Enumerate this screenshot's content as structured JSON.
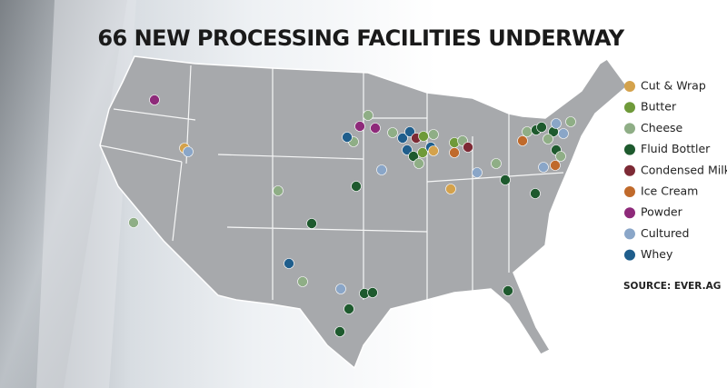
{
  "title": "66 NEW PROCESSING FACILITIES UNDERWAY",
  "legend": [
    {
      "label": "Cut & Wrap",
      "color": "#d4a24c"
    },
    {
      "label": "Butter",
      "color": "#6f9a3a"
    },
    {
      "label": "Cheese",
      "color": "#8fae86"
    },
    {
      "label": "Fluid Bottler",
      "color": "#1e5a2e"
    },
    {
      "label": "Condensed Milk",
      "color": "#7d2a35"
    },
    {
      "label": "Ice Cream",
      "color": "#c06a2b"
    },
    {
      "label": "Powder",
      "color": "#8e2a7a"
    },
    {
      "label": "Cultured",
      "color": "#8aa6c8"
    },
    {
      "label": "Whey",
      "color": "#1f5e8c"
    }
  ],
  "source": "SOURCE: EVER.AG"
}
